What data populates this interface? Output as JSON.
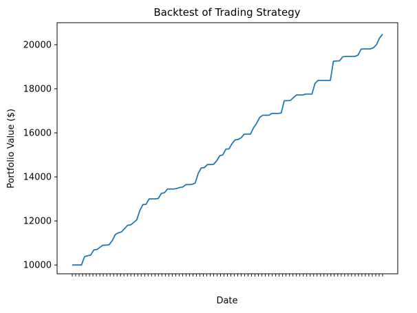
{
  "chart_data": {
    "type": "line",
    "title": "Backtest of Trading Strategy",
    "xlabel": "Date",
    "ylabel": "Portfolio Value ($)",
    "ylim": [
      9600,
      21000
    ],
    "yticks": [
      10000,
      12000,
      14000,
      16000,
      18000,
      20000
    ],
    "grid": false,
    "legend": "none",
    "line_color": "#1f77b4",
    "x_tick_count": 91,
    "series": [
      {
        "name": "",
        "values": [
          10000,
          10000,
          10000,
          10000,
          10380,
          10420,
          10450,
          10680,
          10700,
          10800,
          10900,
          10900,
          10920,
          11100,
          11380,
          11460,
          11500,
          11650,
          11800,
          11820,
          11930,
          12050,
          12480,
          12740,
          12750,
          13000,
          13000,
          13000,
          13020,
          13250,
          13280,
          13450,
          13450,
          13450,
          13470,
          13520,
          13540,
          13650,
          13650,
          13660,
          13720,
          14160,
          14410,
          14420,
          14560,
          14560,
          14570,
          14730,
          14960,
          15000,
          15260,
          15270,
          15510,
          15680,
          15700,
          15780,
          15940,
          15940,
          15940,
          16230,
          16430,
          16700,
          16800,
          16800,
          16800,
          16880,
          16880,
          16880,
          16900,
          17460,
          17460,
          17470,
          17600,
          17720,
          17720,
          17720,
          17760,
          17760,
          17760,
          18240,
          18380,
          18380,
          18380,
          18380,
          18380,
          19250,
          19260,
          19270,
          19450,
          19470,
          19470,
          19470,
          19470,
          19530,
          19800,
          19810,
          19810,
          19810,
          19860,
          20000,
          20300,
          20480
        ]
      }
    ]
  }
}
